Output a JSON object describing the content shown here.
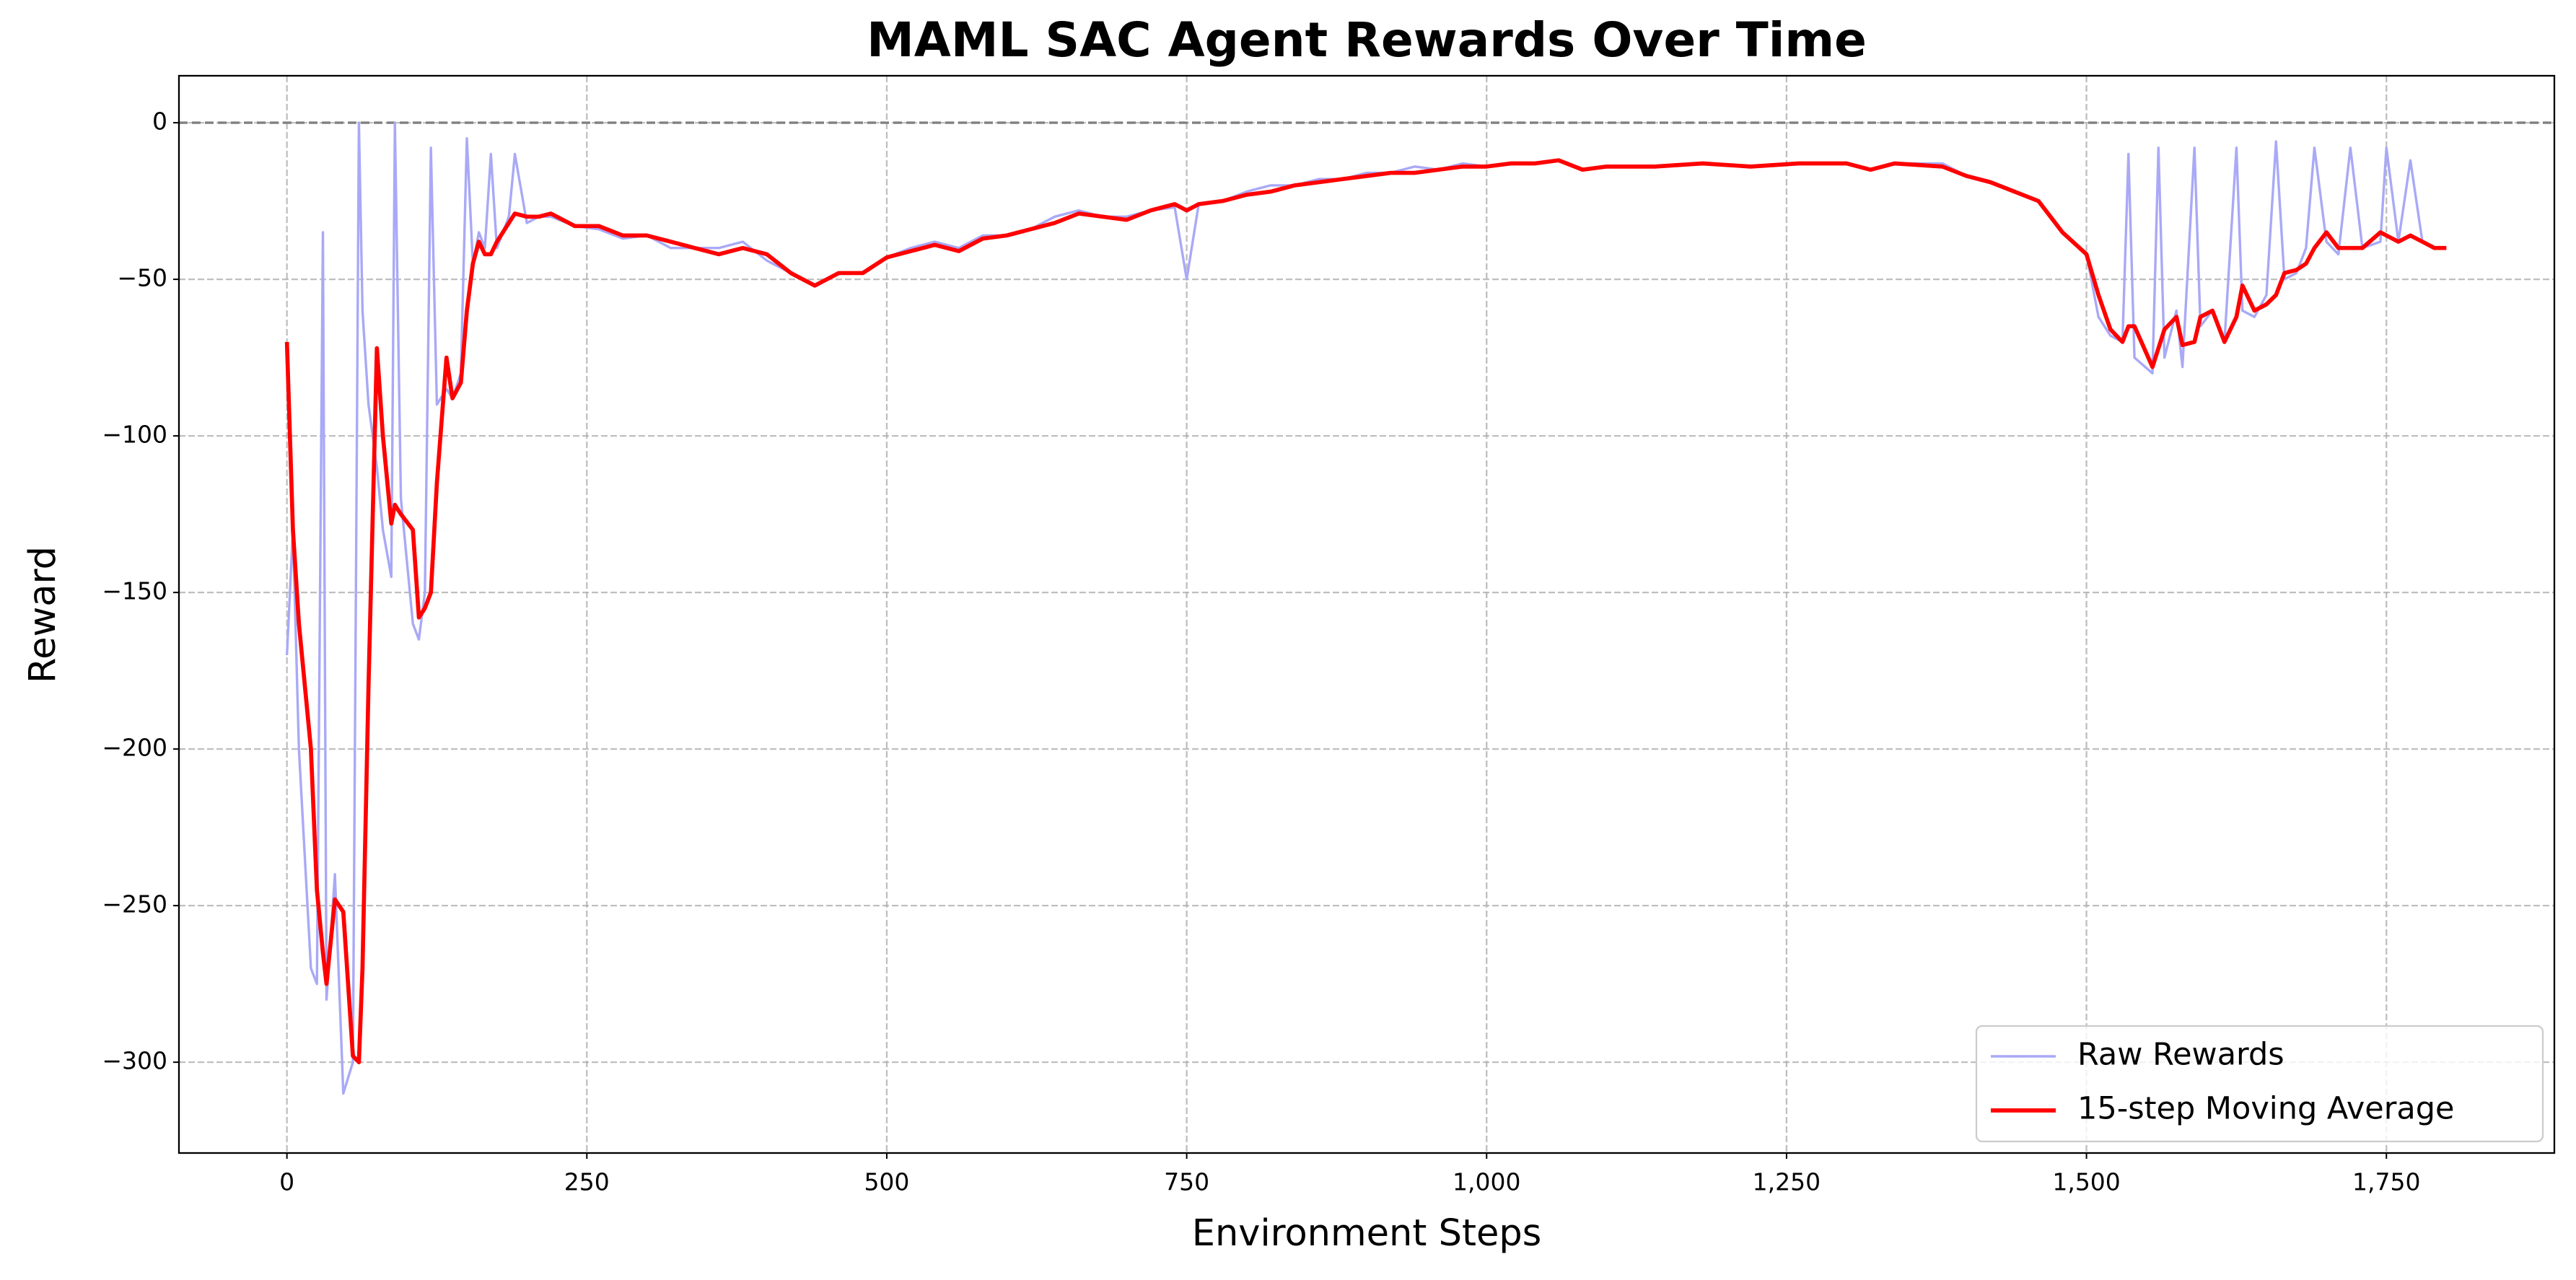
{
  "chart_data": {
    "type": "line",
    "title": "MAML SAC Agent Rewards Over Time",
    "x_label": "Environment Steps",
    "y_label": "Reward",
    "x": [
      0,
      5,
      10,
      20,
      25,
      30,
      33,
      40,
      47,
      55,
      60,
      63,
      68,
      75,
      80,
      87,
      90,
      95,
      105,
      110,
      115,
      120,
      125,
      133,
      138,
      145,
      150,
      155,
      160,
      165,
      170,
      175,
      185,
      190,
      200,
      210,
      220,
      240,
      260,
      280,
      300,
      320,
      340,
      360,
      380,
      400,
      420,
      440,
      460,
      480,
      500,
      520,
      540,
      560,
      580,
      600,
      620,
      640,
      660,
      680,
      700,
      720,
      740,
      750,
      760,
      780,
      800,
      820,
      840,
      860,
      880,
      900,
      920,
      940,
      960,
      980,
      1000,
      1020,
      1040,
      1060,
      1080,
      1100,
      1140,
      1180,
      1220,
      1260,
      1300,
      1320,
      1340,
      1380,
      1400,
      1420,
      1440,
      1460,
      1480,
      1500,
      1510,
      1520,
      1530,
      1535,
      1540,
      1555,
      1560,
      1565,
      1575,
      1580,
      1590,
      1595,
      1605,
      1615,
      1625,
      1630,
      1640,
      1650,
      1658,
      1665,
      1675,
      1683,
      1690,
      1700,
      1710,
      1720,
      1730,
      1745,
      1750,
      1760,
      1770,
      1780,
      1790,
      1800
    ],
    "series": [
      {
        "name": "Raw Rewards",
        "color": "#a9a9f7",
        "values": [
          -170,
          -130,
          -200,
          -270,
          -275,
          -35,
          -280,
          -240,
          -310,
          -300,
          0,
          -60,
          -90,
          -110,
          -130,
          -145,
          0,
          -120,
          -160,
          -165,
          -150,
          -8,
          -90,
          -85,
          -88,
          -80,
          -5,
          -45,
          -35,
          -40,
          -10,
          -40,
          -30,
          -10,
          -32,
          -30,
          -30,
          -33,
          -34,
          -37,
          -36,
          -40,
          -40,
          -40,
          -38,
          -44,
          -48,
          -52,
          -48,
          -48,
          -43,
          -40,
          -38,
          -40,
          -36,
          -36,
          -34,
          -30,
          -28,
          -30,
          -30,
          -28,
          -27,
          -50,
          -26,
          -25,
          -22,
          -20,
          -20,
          -18,
          -18,
          -16,
          -16,
          -14,
          -15,
          -13,
          -14,
          -13,
          -13,
          -12,
          -15,
          -14,
          -14,
          -13,
          -14,
          -13,
          -13,
          -15,
          -13,
          -13,
          -17,
          -19,
          -22,
          -25,
          -35,
          -42,
          -62,
          -68,
          -70,
          -10,
          -75,
          -80,
          -8,
          -75,
          -60,
          -78,
          -8,
          -65,
          -60,
          -70,
          -8,
          -60,
          -62,
          -55,
          -6,
          -50,
          -48,
          -40,
          -8,
          -38,
          -42,
          -8,
          -40,
          -38,
          -8,
          -38,
          -12,
          -38,
          -40,
          -40
        ]
      },
      {
        "name": "15-step Moving Average",
        "color": "#ff0000",
        "values": [
          -70,
          -130,
          -160,
          -200,
          -245,
          -265,
          -275,
          -248,
          -252,
          -298,
          -300,
          -270,
          -180,
          -72,
          -100,
          -128,
          -122,
          -125,
          -130,
          -158,
          -155,
          -150,
          -115,
          -75,
          -88,
          -83,
          -60,
          -45,
          -38,
          -42,
          -42,
          -38,
          -32,
          -29,
          -30,
          -30,
          -29,
          -33,
          -33,
          -36,
          -36,
          -38,
          -40,
          -42,
          -40,
          -42,
          -48,
          -52,
          -48,
          -48,
          -43,
          -41,
          -39,
          -41,
          -37,
          -36,
          -34,
          -32,
          -29,
          -30,
          -31,
          -28,
          -26,
          -28,
          -26,
          -25,
          -23,
          -22,
          -20,
          -19,
          -18,
          -17,
          -16,
          -16,
          -15,
          -14,
          -14,
          -13,
          -13,
          -12,
          -15,
          -14,
          -14,
          -13,
          -14,
          -13,
          -13,
          -15,
          -13,
          -14,
          -17,
          -19,
          -22,
          -25,
          -35,
          -42,
          -55,
          -66,
          -70,
          -65,
          -65,
          -78,
          -72,
          -66,
          -62,
          -71,
          -70,
          -62,
          -60,
          -70,
          -62,
          -52,
          -60,
          -58,
          -55,
          -48,
          -47,
          -45,
          -40,
          -35,
          -40,
          -40,
          -40,
          -35,
          -36,
          -38,
          -36,
          -38,
          -40,
          -40
        ]
      }
    ],
    "xlim": [
      -90,
      1890
    ],
    "ylim": [
      -329,
      15
    ],
    "xticks": [
      0,
      250,
      500,
      750,
      {
        "value": 1000,
        "label": "1,000"
      },
      {
        "value": 1250,
        "label": "1,250"
      },
      {
        "value": 1500,
        "label": "1,500"
      },
      {
        "value": 1750,
        "label": "1,750"
      }
    ],
    "yticks": [
      0,
      {
        "value": -50,
        "label": "−50"
      },
      {
        "value": -100,
        "label": "−100"
      },
      {
        "value": -150,
        "label": "−150"
      },
      {
        "value": -200,
        "label": "−200"
      },
      {
        "value": -250,
        "label": "−250"
      },
      {
        "value": -300,
        "label": "−300"
      }
    ],
    "hline": 0,
    "grid": true,
    "legend": "lower right"
  }
}
